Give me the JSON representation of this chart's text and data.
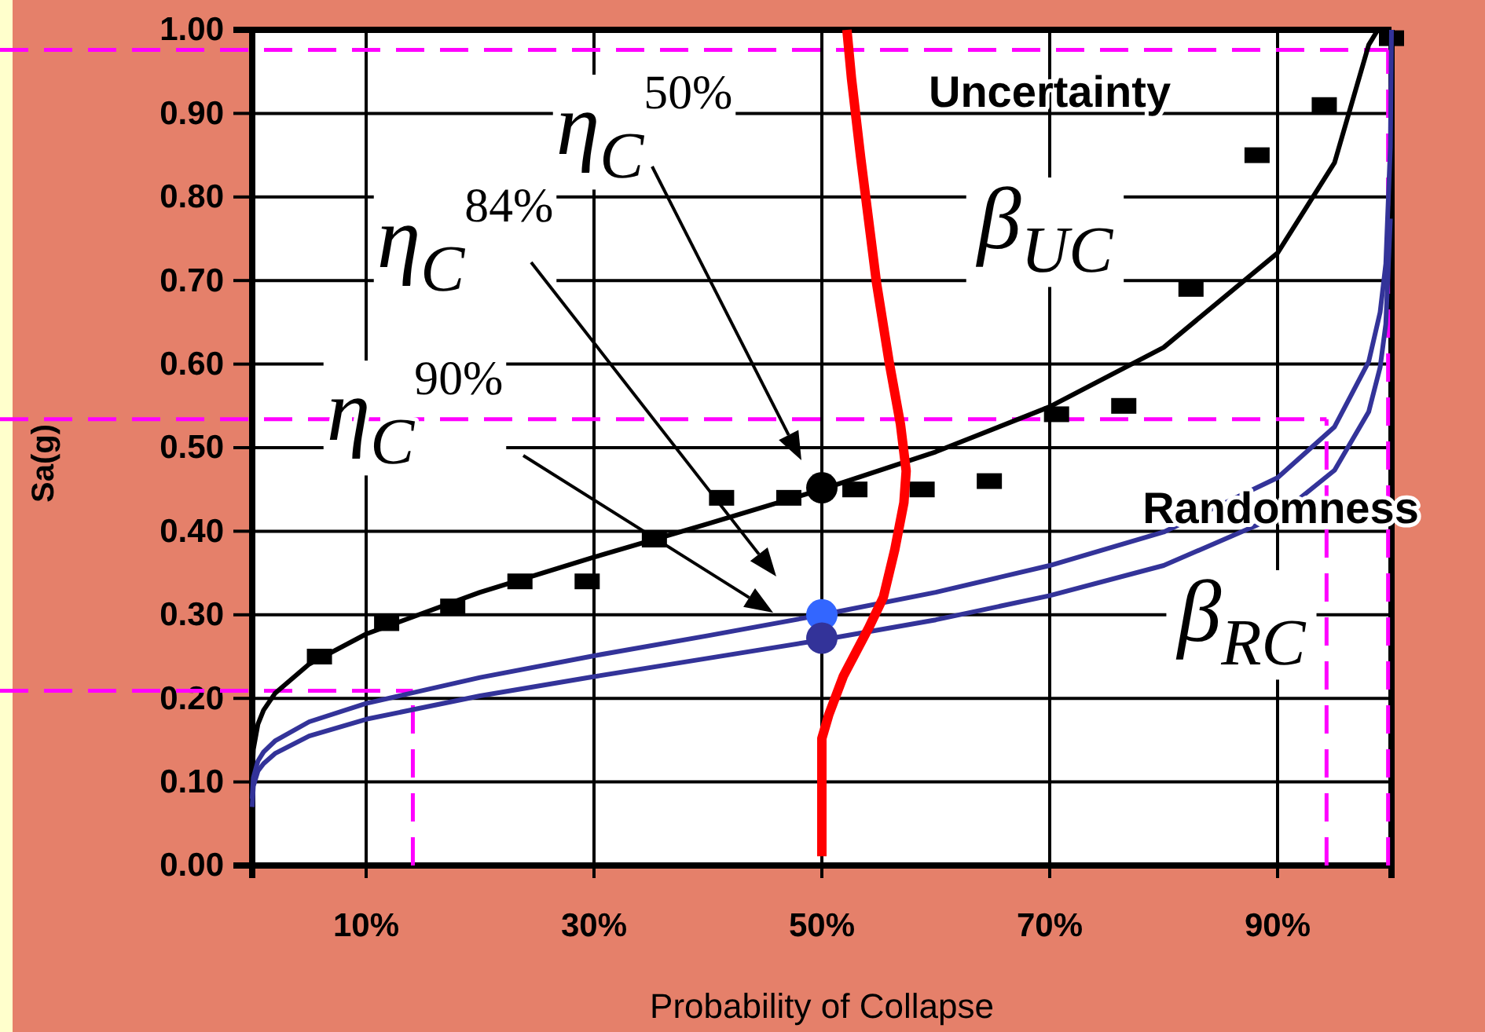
{
  "chart_data": {
    "type": "line",
    "xlabel": "Probability of Collapse",
    "ylabel": "Sa(g)",
    "xlim": [
      0,
      100
    ],
    "ylim": [
      0,
      1
    ],
    "xticks": [
      {
        "value": 10,
        "label": "10%"
      },
      {
        "value": 30,
        "label": "30%"
      },
      {
        "value": 50,
        "label": "50%"
      },
      {
        "value": 70,
        "label": "70%"
      },
      {
        "value": 90,
        "label": "90%"
      }
    ],
    "yticks": [
      {
        "value": 0,
        "label": "0.00"
      },
      {
        "value": 0.1,
        "label": "0.10"
      },
      {
        "value": 0.2,
        "label": "0.20"
      },
      {
        "value": 0.3,
        "label": "0.30"
      },
      {
        "value": 0.4,
        "label": "0.40"
      },
      {
        "value": 0.5,
        "label": "0.50"
      },
      {
        "value": 0.6,
        "label": "0.60"
      },
      {
        "value": 0.7,
        "label": "0.70"
      },
      {
        "value": 0.8,
        "label": "0.80"
      },
      {
        "value": 0.9,
        "label": "0.90"
      },
      {
        "value": 1,
        "label": "1.00"
      }
    ],
    "grid": true,
    "series": [
      {
        "color": "#000000",
        "line_style": "solid",
        "marker": "none",
        "x": [
          0,
          0.01,
          0.1,
          0.5,
          1,
          2,
          5,
          10,
          20,
          30,
          40,
          50,
          60,
          70,
          80,
          90,
          95,
          98,
          98.8
        ],
        "values": [
          0,
          0.11,
          0.139,
          0.169,
          0.186,
          0.206,
          0.241,
          0.277,
          0.327,
          0.369,
          0.409,
          0.45,
          0.495,
          0.549,
          0.62,
          0.733,
          0.841,
          0.982,
          1
        ]
      },
      {
        "type": "scatter",
        "color": "#000000",
        "marker": "square",
        "x": [
          5.9,
          11.8,
          17.6,
          23.5,
          29.4,
          35.3,
          41.2,
          47.1,
          52.9,
          58.8,
          64.7,
          70.6,
          76.5,
          82.4,
          88.2,
          94.1,
          100
        ],
        "values": [
          0.25,
          0.29,
          0.31,
          0.34,
          0.34,
          0.39,
          0.44,
          0.44,
          0.45,
          0.45,
          0.46,
          0.54,
          0.55,
          0.69,
          0.85,
          0.91,
          0.99
        ]
      },
      {
        "color": "#333399",
        "line_style": "solid",
        "marker": "none",
        "x": [
          0,
          0.1,
          0.5,
          1,
          2,
          5,
          10,
          20,
          30,
          40,
          50,
          60,
          70,
          80,
          90,
          95,
          98,
          99,
          99.5,
          99.9,
          100
        ],
        "values": [
          0.08,
          0.105,
          0.125,
          0.136,
          0.149,
          0.172,
          0.194,
          0.225,
          0.251,
          0.275,
          0.3,
          0.327,
          0.359,
          0.399,
          0.464,
          0.525,
          0.603,
          0.662,
          0.72,
          0.86,
          1
        ]
      },
      {
        "color": "#333399",
        "line_style": "solid",
        "marker": "none",
        "x": [
          0,
          0.1,
          0.5,
          1,
          2,
          5,
          10,
          20,
          30,
          40,
          50,
          60,
          70,
          80,
          90,
          95,
          98,
          99,
          99.5,
          99.9
        ],
        "values": [
          0.07,
          0.095,
          0.113,
          0.122,
          0.134,
          0.155,
          0.175,
          0.203,
          0.226,
          0.248,
          0.27,
          0.294,
          0.323,
          0.359,
          0.418,
          0.473,
          0.543,
          0.596,
          0.648,
          0.774
        ]
      },
      {
        "color": "#ff0000",
        "line_style": "solid",
        "marker": "none",
        "x": [
          50,
          50,
          50.6,
          51.9,
          54.1,
          55.4,
          56.4,
          57.2,
          57.4,
          56.9,
          55.9,
          54.8,
          53.4,
          52.6,
          52.2
        ],
        "values": [
          0.011,
          0.152,
          0.18,
          0.227,
          0.284,
          0.321,
          0.378,
          0.434,
          0.472,
          0.528,
          0.603,
          0.697,
          0.848,
          0.942,
          1
        ]
      },
      {
        "type": "scatter",
        "color": "#000000",
        "marker": "circle",
        "x": [
          50
        ],
        "values": [
          0.452
        ]
      },
      {
        "type": "scatter",
        "color": "#3366ff",
        "marker": "circle",
        "x": [
          50
        ],
        "values": [
          0.3
        ]
      },
      {
        "type": "scatter",
        "color": "#333399",
        "marker": "circle",
        "x": [
          50
        ],
        "values": [
          0.272
        ]
      }
    ],
    "ref_lines": [
      {
        "axis": "y",
        "value": 0.976,
        "color": "#ff00ff",
        "line_style": "dashed"
      },
      {
        "axis": "x",
        "value": 99.7,
        "color": "#ff00ff",
        "line_style": "dashed"
      },
      {
        "axis": "y",
        "value": 0.534,
        "color": "#ff00ff",
        "line_style": "dashed"
      },
      {
        "axis": "x",
        "value": 94.3,
        "color": "#ff00ff",
        "line_style": "dashed"
      },
      {
        "axis": "y",
        "value": 0.209,
        "color": "#ff00ff",
        "line_style": "dashed"
      },
      {
        "axis": "x",
        "value": 14.1,
        "color": "#ff00ff",
        "line_style": "dashed"
      }
    ],
    "annotations": [
      "η$_{C}$$^{50%}$",
      "η$_{C}$$^{84%}$",
      "η$_{C}$$^{90%}$",
      "Uncertainty",
      "β$_{UC}$",
      "Randomness",
      "β$_{RC}$"
    ]
  }
}
